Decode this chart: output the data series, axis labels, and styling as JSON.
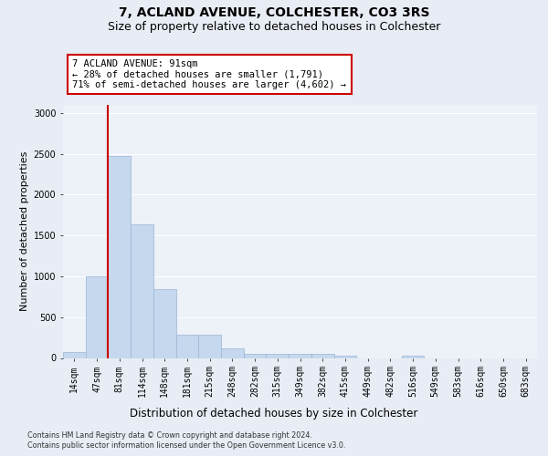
{
  "title": "7, ACLAND AVENUE, COLCHESTER, CO3 3RS",
  "subtitle": "Size of property relative to detached houses in Colchester",
  "xlabel": "Distribution of detached houses by size in Colchester",
  "ylabel": "Number of detached properties",
  "categories": [
    "14sqm",
    "47sqm",
    "81sqm",
    "114sqm",
    "148sqm",
    "181sqm",
    "215sqm",
    "248sqm",
    "282sqm",
    "315sqm",
    "349sqm",
    "382sqm",
    "415sqm",
    "449sqm",
    "482sqm",
    "516sqm",
    "549sqm",
    "583sqm",
    "616sqm",
    "650sqm",
    "683sqm"
  ],
  "values": [
    75,
    1000,
    2470,
    1640,
    840,
    280,
    280,
    120,
    55,
    50,
    50,
    50,
    30,
    0,
    0,
    30,
    0,
    0,
    0,
    0,
    0
  ],
  "bar_color": "#c5d8ee",
  "bar_edge_color": "#9ab5d5",
  "red_line_index": 2,
  "annotation_text": "7 ACLAND AVENUE: 91sqm\n← 28% of detached houses are smaller (1,791)\n71% of semi-detached houses are larger (4,602) →",
  "ylim": [
    0,
    3100
  ],
  "yticks": [
    0,
    500,
    1000,
    1500,
    2000,
    2500,
    3000
  ],
  "footer1": "Contains HM Land Registry data © Crown copyright and database right 2024.",
  "footer2": "Contains public sector information licensed under the Open Government Licence v3.0.",
  "bg_color": "#e8edf5",
  "plot_bg_color": "#edf1f8",
  "grid_color": "#ffffff",
  "title_fontsize": 10,
  "subtitle_fontsize": 9,
  "tick_fontsize": 7,
  "ylabel_fontsize": 8,
  "xlabel_fontsize": 8.5
}
